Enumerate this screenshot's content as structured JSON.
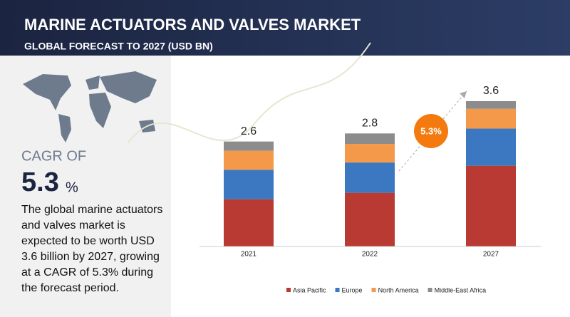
{
  "title": "MARINE ACTUATORS AND VALVES MARKET",
  "subtitle": "GLOBAL FORECAST TO 2027 (USD BN)",
  "cagr": {
    "label": "CAGR OF",
    "value": "5.3",
    "unit": "%"
  },
  "description": "The global marine actuators and valves market is expected to be worth USD 3.6 billion by 2027, growing at a CAGR of 5.3% during the forecast period.",
  "chart_data": {
    "type": "stacked-bar",
    "categories": [
      "2021",
      "2022",
      "2027"
    ],
    "series": [
      {
        "name": "Asia Pacific",
        "color": "#b83a32",
        "values": [
          1.17,
          1.33,
          2.0
        ]
      },
      {
        "name": "Europe",
        "color": "#3b78c1",
        "values": [
          0.73,
          0.75,
          0.92
        ]
      },
      {
        "name": "North America",
        "color": "#f4994a",
        "values": [
          0.47,
          0.46,
          0.49
        ]
      },
      {
        "name": "Middle-East Africa",
        "color": "#8c8c8c",
        "values": [
          0.23,
          0.26,
          0.19
        ]
      }
    ],
    "totals": [
      2.6,
      2.8,
      3.6
    ],
    "annotation": "5.3%",
    "legend": "bottom"
  }
}
